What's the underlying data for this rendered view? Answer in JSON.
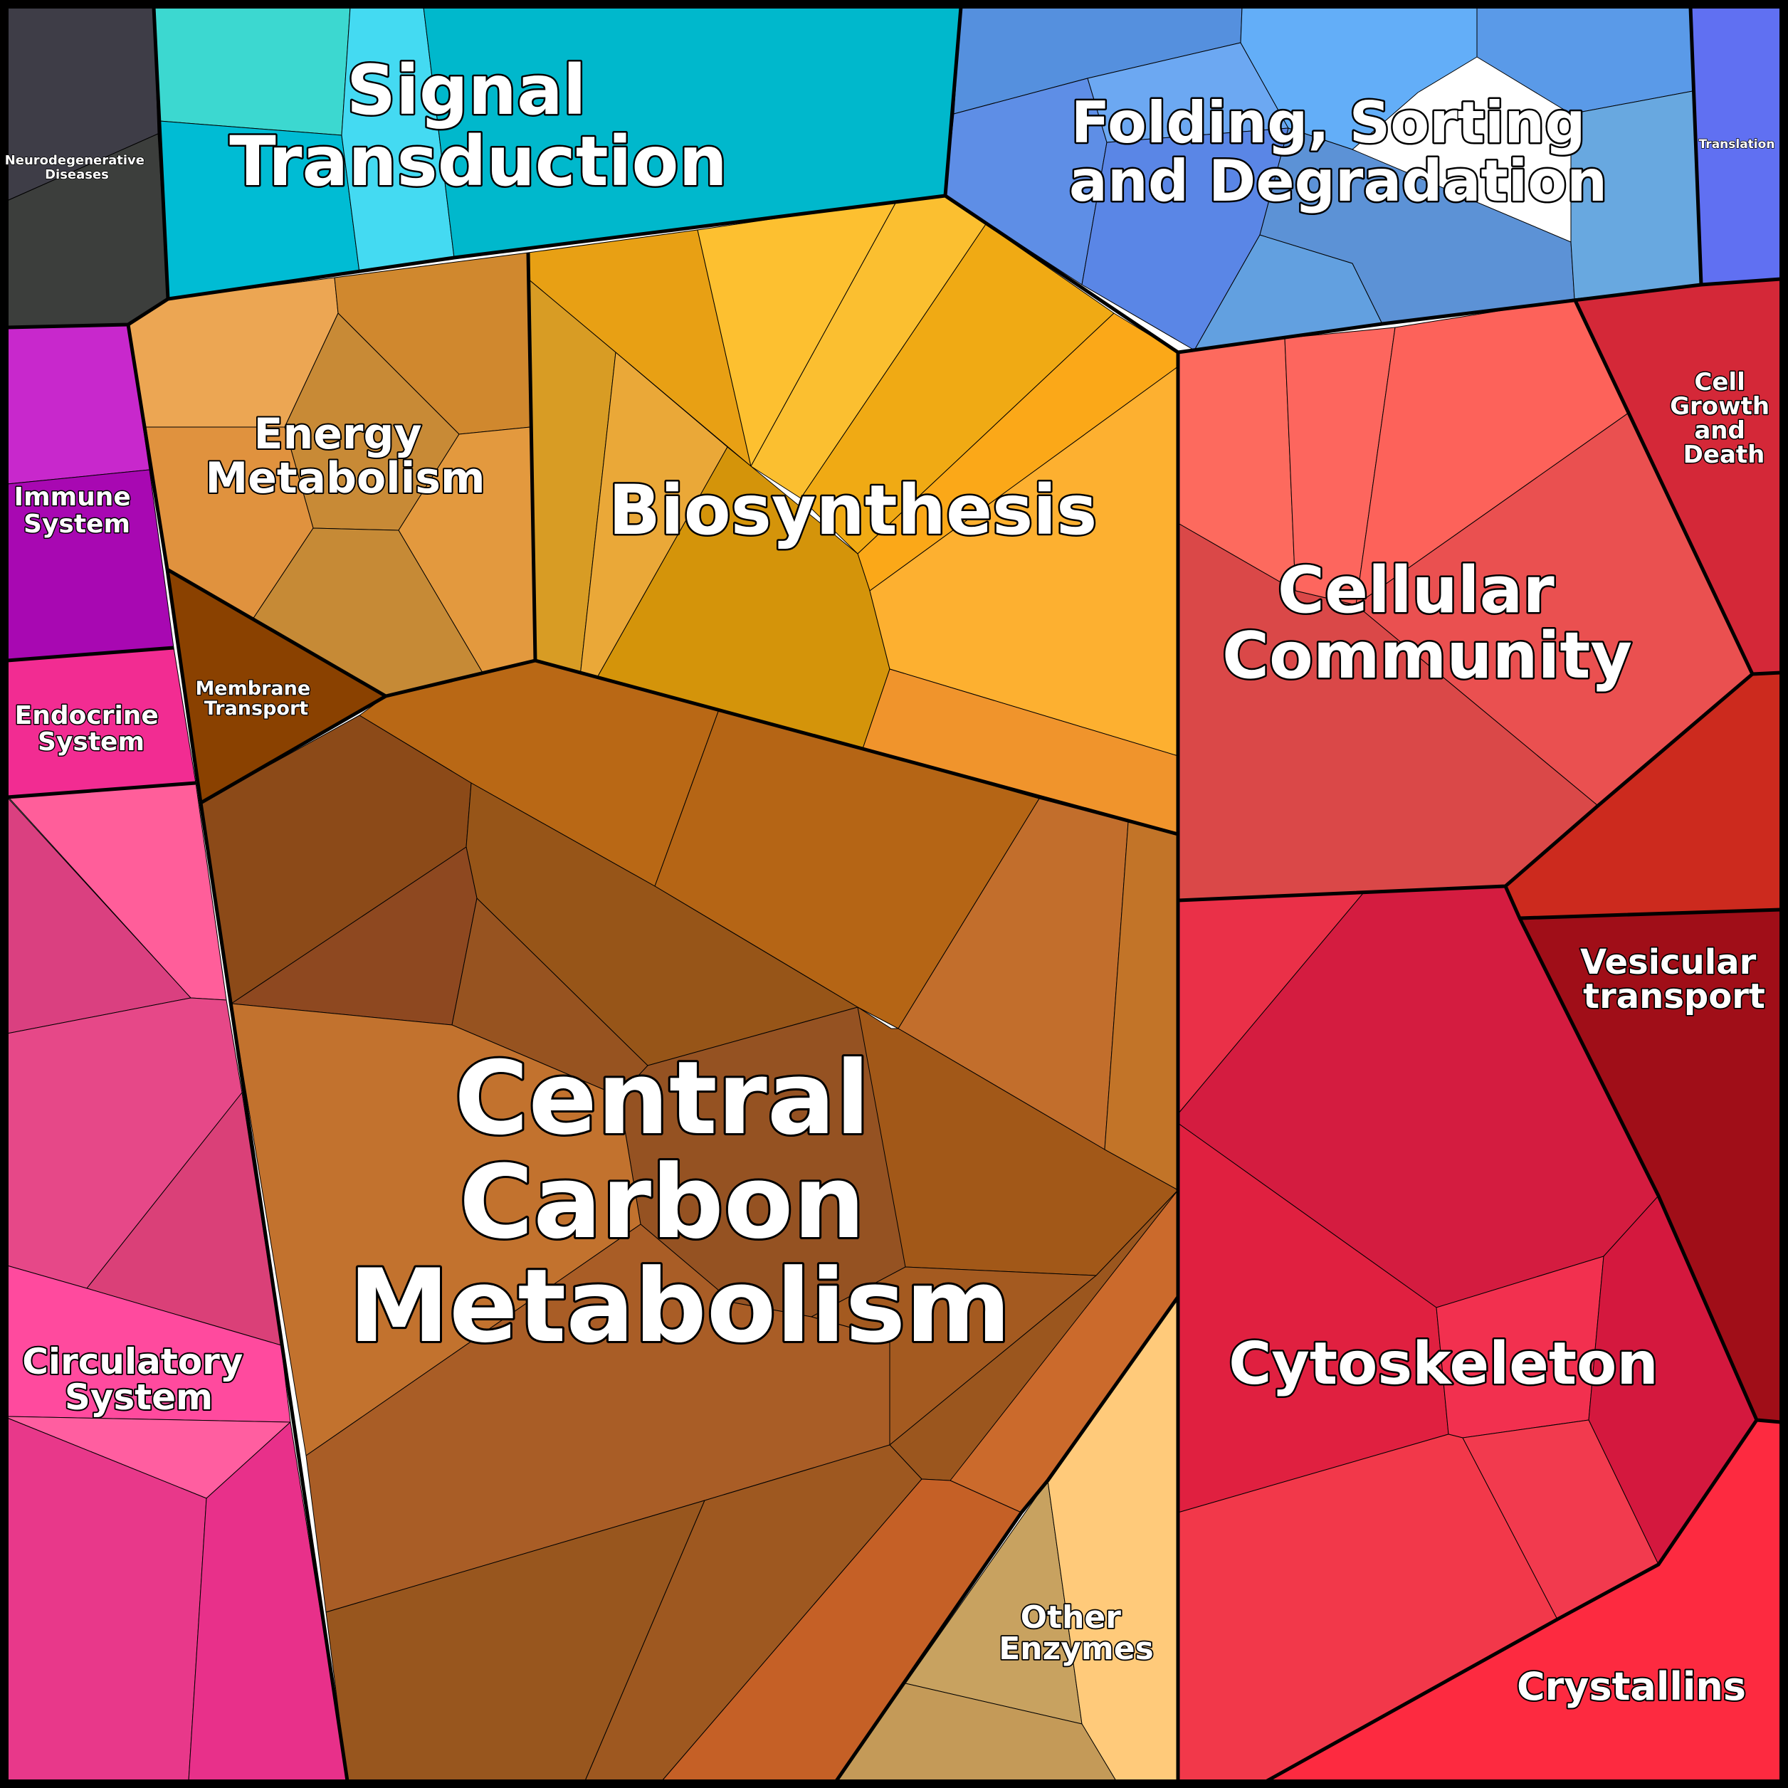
{
  "labels": {
    "neurodegenerative": [
      "Neurodegenerative",
      "Diseases"
    ],
    "signal": [
      "Signal",
      "Transduction"
    ],
    "folding": [
      "Folding, Sorting",
      "and Degradation"
    ],
    "translation": [
      "Translation"
    ],
    "immune": [
      "Immune",
      "System"
    ],
    "energy": [
      "Energy",
      "Metabolism"
    ],
    "biosynthesis": [
      "Biosynthesis"
    ],
    "cell_growth": [
      "Cell",
      "Growth",
      "and",
      "Death"
    ],
    "cellular": [
      "Cellular",
      "Community"
    ],
    "membrane": [
      "Membrane",
      "Transport"
    ],
    "endocrine": [
      "Endocrine",
      "System"
    ],
    "vesicular": [
      "Vesicular",
      "transport"
    ],
    "central": [
      "Central",
      "Carbon",
      "Metabolism"
    ],
    "cytoskeleton": [
      "Cytoskeleton"
    ],
    "circulatory": [
      "Circulatory",
      "System"
    ],
    "other": [
      "Other",
      "Enzymes"
    ],
    "crystallins": [
      "Crystallins"
    ]
  },
  "colors": {
    "neurodegenerative": "#3f3f45",
    "signal": "#00bcd0",
    "folding": "#5b94e0",
    "translation": "#6070f0",
    "immune": "#b81cc0",
    "energy": "#d9933f",
    "biosynthesis": "#f0a820",
    "cell_growth": "#d42838",
    "cellular": "#e85050",
    "membrane": "#8a4000",
    "endocrine": "#f0308f",
    "vesicular": "#a00e18",
    "central": "#a8601e",
    "cytoskeleton": "#d81e40",
    "circulatory": "#e84890",
    "other": "#d8b070",
    "crystallins": "#f82840"
  }
}
